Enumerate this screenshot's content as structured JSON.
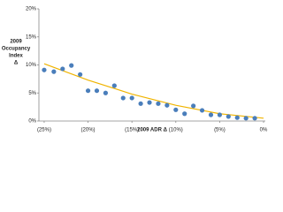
{
  "chart_data": {
    "type": "scatter",
    "xlabel": "2009 ADR Δ",
    "ylabel": [
      "2009",
      "Occupancy",
      "Index",
      "Δ"
    ],
    "x": [
      -25,
      -23.9,
      -22.9,
      -21.9,
      -20.9,
      -20,
      -19,
      -18,
      -17,
      -16,
      -15,
      -14,
      -13,
      -12,
      -11,
      -10,
      -9,
      -8,
      -7,
      -6,
      -5,
      -4,
      -3,
      -2,
      -1
    ],
    "values": [
      9.1,
      8.8,
      9.3,
      9.9,
      8.3,
      5.4,
      5.4,
      5.0,
      6.3,
      4.1,
      4.1,
      3.1,
      3.3,
      3.1,
      2.8,
      2.0,
      1.3,
      2.7,
      1.9,
      1.1,
      1.1,
      0.8,
      0.6,
      0.5,
      0.5
    ],
    "color": "#4a7ebb",
    "trendline": {
      "x": [
        -25,
        -20,
        -15,
        -10,
        -5,
        0
      ],
      "values": [
        10.2,
        7.3,
        4.8,
        2.8,
        1.3,
        0.5
      ],
      "color": "#f0b400"
    },
    "xlim": [
      -25.6,
      0.2
    ],
    "ylim": [
      0,
      20
    ],
    "xticks": [
      {
        "value": -25,
        "label": "(25%)"
      },
      {
        "value": -20,
        "label": "(20%)"
      },
      {
        "value": -15,
        "label": "(15%)"
      },
      {
        "value": -10,
        "label": "(10%)"
      },
      {
        "value": -5,
        "label": "(5%)"
      },
      {
        "value": 0,
        "label": "0%"
      }
    ],
    "yticks": [
      {
        "value": 0,
        "label": "0%"
      },
      {
        "value": 5,
        "label": "5%"
      },
      {
        "value": 10,
        "label": "10%"
      },
      {
        "value": 15,
        "label": "15%"
      },
      {
        "value": 20,
        "label": "20%"
      }
    ]
  }
}
